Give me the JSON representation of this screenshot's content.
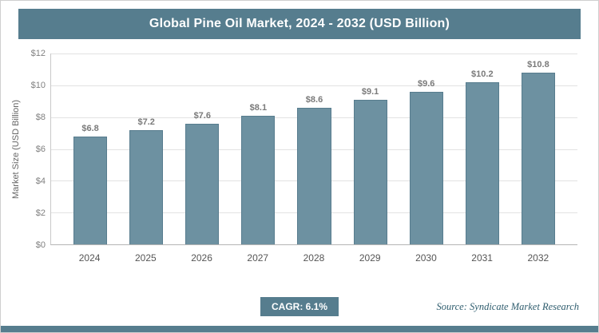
{
  "header": {
    "title": "Global Pine Oil Market, 2024 - 2032 (USD Billion)"
  },
  "footer": {
    "cagr_label": "CAGR: 6.1%",
    "source": "Source: Syndicate Market Research"
  },
  "colors": {
    "header_bg": "#567d8e",
    "bar_fill": "#6d91a1",
    "bar_border": "#577c8e",
    "accent_strip": "#567d8e",
    "gridline": "#e2e2e2",
    "label_gray": "#7a7a7a"
  },
  "chart_data": {
    "type": "bar",
    "title": "Global Pine Oil Market, 2024 - 2032 (USD Billion)",
    "categories": [
      "2024",
      "2025",
      "2026",
      "2027",
      "2028",
      "2029",
      "2030",
      "2031",
      "2032"
    ],
    "values": [
      6.8,
      7.2,
      7.6,
      8.1,
      8.6,
      9.1,
      9.6,
      10.2,
      10.8
    ],
    "bar_labels": [
      "$6.8",
      "$7.2",
      "$7.6",
      "$8.1",
      "$8.6",
      "$9.1",
      "$9.6",
      "$10.2",
      "$10.8"
    ],
    "xlabel": "",
    "ylabel": "Market Size (USD Billion)",
    "ylim": [
      0,
      12
    ],
    "ytick_values": [
      0,
      2,
      4,
      6,
      8,
      10,
      12
    ],
    "ytick_labels": [
      "$0",
      "$2",
      "$4",
      "$6",
      "$8",
      "$10",
      "$12"
    ],
    "grid": true,
    "legend": false
  }
}
